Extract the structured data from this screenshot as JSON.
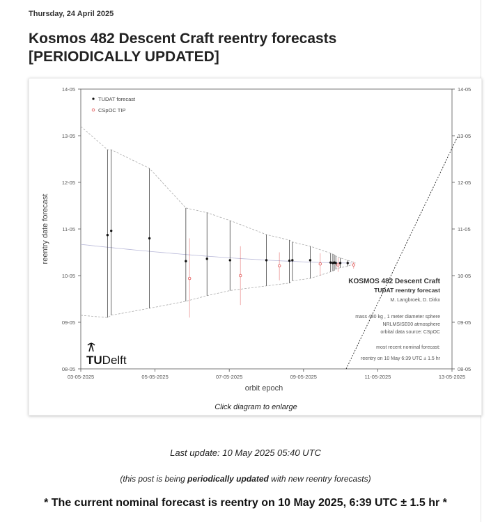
{
  "post": {
    "date_header": "Thursday, 24 April 2025",
    "title": "Kosmos 482 Descent Craft reentry forecasts [PERIODICALLY UPDATED]",
    "caption": "Click diagram to enlarge",
    "last_update": "Last update: 10 May 2025 05:40 UTC",
    "note_before": "(this post is being ",
    "note_bold": "periodically updated",
    "note_after": " with new reentry forecasts)",
    "nominal": "* The current nominal forecast is reentry on 10 May 2025, 6:39 UTC ± 1.5 hr *"
  },
  "colors": {
    "tudat": "#111111",
    "cspoc": "#e05050",
    "envelope": "#aaaaaa",
    "trend": "#b8b8d8"
  },
  "chart_data": {
    "type": "scatter",
    "xlabel": "orbit epoch",
    "ylabel": "reentry date forecast",
    "x_ticks": [
      "03-05-2025",
      "05-05-2025",
      "07-05-2025",
      "09-05-2025",
      "11-05-2025",
      "13-05-2025"
    ],
    "y_ticks": [
      "08-05",
      "09-05",
      "10-05",
      "11-05",
      "12-05",
      "13-05",
      "14-05"
    ],
    "xlim": [
      "2025-05-03",
      "2025-05-13"
    ],
    "ylim": [
      "2025-05-08",
      "2025-05-14"
    ],
    "legend": [
      "TUDAT forecast",
      "CSpOC TIP"
    ],
    "legend_position": "top-left",
    "logo": "TUDelft",
    "annotations": [
      "KOSMOS 482 Descent Craft",
      "TUDAT reentry forecast",
      "M. Langbroek, D. Dirkx",
      "mass 480 kg , 1 meter diameter sphere",
      "NRLMSISE00 atmosphere",
      "orbital data source: CSpOC",
      "most recent nominal forecast:",
      "reentry on 10 May 6:39 UTC ± 1.5 hr"
    ],
    "series": [
      {
        "name": "TUDAT forecast",
        "x_days": [
          3.72,
          3.82,
          4.85,
          5.83,
          6.4,
          7.02,
          8.0,
          8.62,
          8.7,
          9.18,
          9.73,
          9.79,
          9.83,
          9.87,
          9.99,
          10.19
        ],
        "y_days": [
          10.87,
          10.96,
          10.8,
          10.31,
          10.36,
          10.33,
          10.33,
          10.32,
          10.33,
          10.33,
          10.28,
          10.27,
          10.28,
          10.27,
          10.27,
          10.27
        ],
        "y_low": [
          9.1,
          9.15,
          9.3,
          9.45,
          9.57,
          9.68,
          9.78,
          9.84,
          9.89,
          9.94,
          10.08,
          10.1,
          10.11,
          10.14,
          10.17,
          10.2
        ],
        "y_high": [
          12.7,
          12.7,
          12.3,
          11.45,
          11.35,
          11.18,
          10.88,
          10.76,
          10.72,
          10.63,
          10.48,
          10.46,
          10.45,
          10.42,
          10.38,
          10.33
        ]
      },
      {
        "name": "CSpOC TIP",
        "x_days": [
          5.93,
          7.3,
          8.35,
          9.45,
          9.93,
          10.35
        ],
        "y_days": [
          9.94,
          10.0,
          10.21,
          10.25,
          10.23,
          10.23
        ],
        "y_low": [
          9.1,
          9.37,
          9.9,
          10.0,
          10.08,
          10.15
        ],
        "y_high": [
          10.8,
          10.63,
          10.5,
          10.48,
          10.38,
          10.3
        ]
      }
    ]
  }
}
